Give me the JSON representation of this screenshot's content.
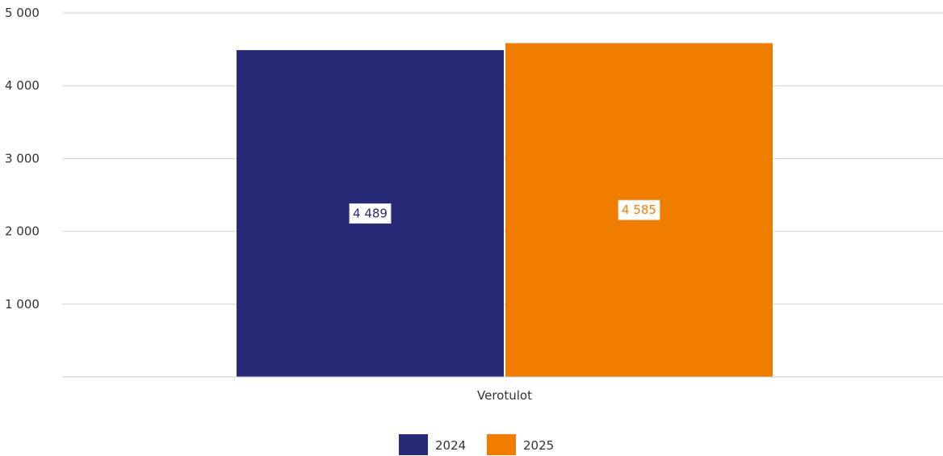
{
  "chart_data": {
    "type": "bar",
    "categories": [
      "Verotulot"
    ],
    "series": [
      {
        "name": "2024",
        "values": [
          4489
        ],
        "label": "4 489",
        "color": "#282a78"
      },
      {
        "name": "2025",
        "values": [
          4585
        ],
        "label": "4 585",
        "color": "#ef7d00"
      }
    ],
    "ylim": [
      0,
      5000
    ],
    "yticks": [
      1000,
      2000,
      3000,
      4000,
      5000
    ],
    "ytick_labels": [
      "1 000",
      "2 000",
      "3 000",
      "4 000",
      "5 000"
    ],
    "grid": true,
    "legend": "bottom-center",
    "title": "",
    "xlabel": "",
    "ylabel": ""
  }
}
